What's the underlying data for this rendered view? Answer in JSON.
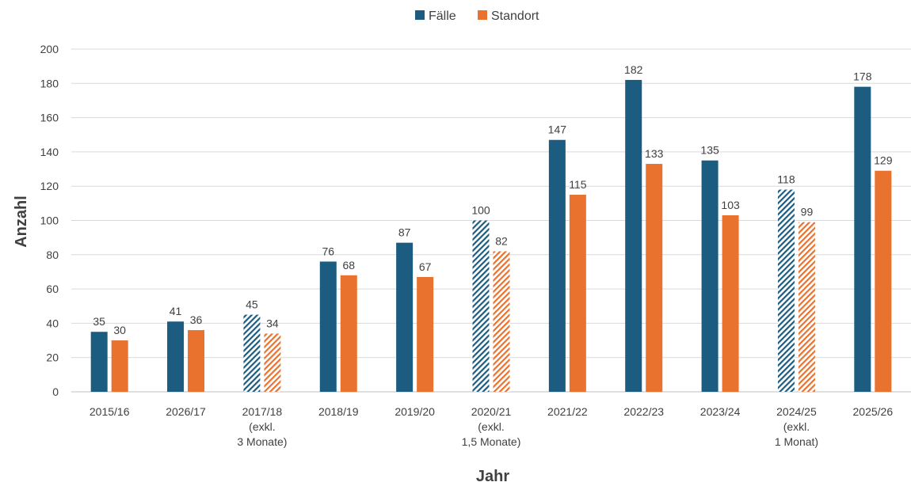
{
  "chart_data": {
    "type": "bar",
    "title": "",
    "xlabel": "Jahr",
    "ylabel": "Anzahl",
    "ylim": [
      0,
      200
    ],
    "yticks": [
      0,
      20,
      40,
      60,
      80,
      100,
      120,
      140,
      160,
      180,
      200
    ],
    "grid": true,
    "legend_position": "top-center",
    "categories": [
      [
        "2015/16"
      ],
      [
        "2026/17"
      ],
      [
        "2017/18",
        "(exkl.",
        "3 Monate)"
      ],
      [
        "2018/19"
      ],
      [
        "2019/20"
      ],
      [
        "2020/21",
        "(exkl.",
        "1,5 Monate)"
      ],
      [
        "2021/22"
      ],
      [
        "2022/23"
      ],
      [
        "2023/24"
      ],
      [
        "2024/25",
        "(exkl.",
        "1 Monat)"
      ],
      [
        "2025/26"
      ]
    ],
    "hatched": [
      false,
      false,
      true,
      false,
      false,
      true,
      false,
      false,
      false,
      true,
      false
    ],
    "series": [
      {
        "name": "Fälle",
        "color": "#1b5c80",
        "values": [
          35,
          41,
          45,
          76,
          87,
          100,
          147,
          182,
          135,
          118,
          178
        ]
      },
      {
        "name": "Standort",
        "color": "#e8722e",
        "values": [
          30,
          36,
          34,
          68,
          67,
          82,
          115,
          133,
          103,
          99,
          129
        ]
      }
    ]
  }
}
